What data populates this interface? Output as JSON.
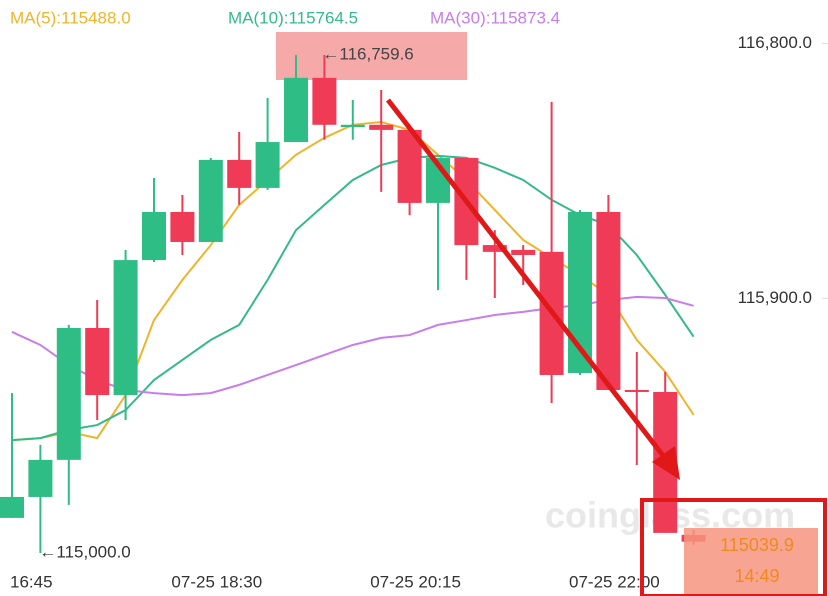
{
  "chart_data": {
    "type": "candlestick",
    "categories": [
      "16:45",
      null,
      null,
      null,
      null,
      null,
      null,
      "07-25 18:30",
      null,
      null,
      null,
      null,
      null,
      null,
      "07-25 20:15",
      null,
      null,
      null,
      null,
      null,
      null,
      "07-25 22:00",
      null,
      null,
      null
    ],
    "open": [
      115124,
      115198,
      115329,
      115795,
      115558,
      116035,
      116205,
      116099,
      116389,
      116290,
      116452,
      116679,
      116505,
      116513,
      116495,
      116237,
      116396,
      116088,
      116071,
      116064,
      115636,
      116205,
      115576,
      115569,
      115064
    ],
    "high": [
      115565,
      115382,
      115806,
      115894,
      116071,
      116325,
      116265,
      116396,
      116488,
      116608,
      116760,
      116759.6,
      116601,
      116636,
      116513,
      116396,
      116396,
      116141,
      116088,
      116594,
      116212,
      116265,
      115710,
      115640,
      115081
    ],
    "low": [
      115124,
      115000,
      115170,
      115470,
      115470,
      116028,
      116053,
      116099,
      116230,
      116283,
      116452,
      116460,
      116460,
      116276,
      116194,
      115929,
      115965,
      115901,
      115947,
      115530,
      115629,
      115576,
      115311,
      115071,
      115028
    ],
    "close": [
      115198,
      115329,
      115795,
      115558,
      116035,
      116205,
      116099,
      116389,
      116290,
      116452,
      116679,
      116513,
      116513,
      116495,
      116237,
      116396,
      116088,
      116064,
      116053,
      115629,
      116205,
      115576,
      115569,
      115071,
      115039.9
    ],
    "up_color": "#2ebd85",
    "down_color": "#ef3b55",
    "series": [
      {
        "name": "MA(5):115488.0",
        "color": "#f0b429",
        "values": [
          115399,
          115406,
          115428,
          115406,
          115558,
          115823,
          115965,
          116088,
          116230,
          116318,
          116407,
          116467,
          116513,
          116523,
          116495,
          116407,
          116318,
          116212,
          116106,
          116043,
          115982,
          115912,
          115753,
          115640,
          115488
        ]
      },
      {
        "name": "MA(10):115764.5",
        "color": "#35b98c",
        "values": [
          115399,
          115406,
          115435,
          115452,
          115505,
          115611,
          115682,
          115753,
          115806,
          115965,
          116141,
          116230,
          116318,
          116371,
          116396,
          116403,
          116396,
          116361,
          116318,
          116248,
          116194,
          116159,
          116053,
          115912,
          115764.5
        ]
      },
      {
        "name": "MA(30):115873.4",
        "color": "#c77dea",
        "values": [
          115781,
          115735,
          115664,
          115611,
          115576,
          115565,
          115558,
          115565,
          115594,
          115629,
          115664,
          115700,
          115735,
          115760,
          115770,
          115806,
          115823,
          115841,
          115852,
          115866,
          115876,
          115894,
          115905,
          115901,
          115873.4
        ]
      }
    ],
    "ylim": [
      114848,
      116954
    ],
    "yticks": [
      {
        "value": 116800,
        "label": "116,800.0"
      },
      {
        "value": 115900,
        "label": "115,900.0"
      }
    ],
    "high_label": "←116,759.6",
    "low_label": "←115,000.0",
    "countdown": "14:49",
    "watermark": "coinglass.com"
  }
}
